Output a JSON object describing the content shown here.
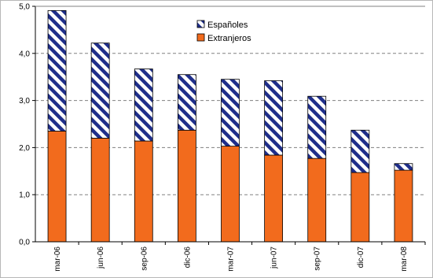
{
  "chart_data": {
    "type": "bar",
    "stacked": true,
    "categories": [
      "mar-06",
      "jun-06",
      "sep-06",
      "dic-06",
      "mar-07",
      "jun-07",
      "sep-07",
      "dic-07",
      "mar-08"
    ],
    "series": [
      {
        "name": "Extranjeros",
        "color": "#f26b1d",
        "values": [
          2.35,
          2.2,
          2.14,
          2.37,
          2.03,
          1.84,
          1.77,
          1.47,
          1.52
        ]
      },
      {
        "name": "Españoles",
        "color": "#1f2e8a",
        "pattern": "diagonal-hatch",
        "values": [
          2.56,
          2.02,
          1.53,
          1.18,
          1.42,
          1.58,
          1.32,
          0.9,
          0.14
        ]
      }
    ],
    "ylim": [
      0,
      5
    ],
    "yticks": [
      "0,0",
      "1,0",
      "2,0",
      "3,0",
      "4,0",
      "5,0"
    ],
    "grid": true,
    "legend_position": "top-right",
    "legend_order": [
      "Españoles",
      "Extranjeros"
    ]
  }
}
